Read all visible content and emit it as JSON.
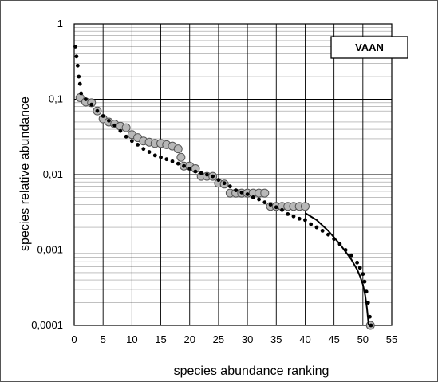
{
  "chart_data": {
    "type": "scatter",
    "title": "",
    "xlabel": "species  abundance  ranking",
    "ylabel": "species  relative  abundance",
    "xlim": [
      0,
      55
    ],
    "ylim": [
      0.0001,
      1
    ],
    "yscale": "log",
    "x_ticks": [
      "0",
      "5",
      "10",
      "15",
      "20",
      "25",
      "30",
      "35",
      "40",
      "45",
      "50",
      "55"
    ],
    "y_ticks": [
      "1",
      "0,1",
      "0,01",
      "0,001",
      "0,0001"
    ],
    "y_tick_values": [
      1,
      0.1,
      0.01,
      0.001,
      0.0001
    ],
    "grid": true,
    "legend": {
      "label": "VAAN",
      "position": "top-right"
    },
    "series": [
      {
        "marker": "small black dot",
        "color": "#000000",
        "points": [
          [
            0.2,
            0.5
          ],
          [
            0.4,
            0.37
          ],
          [
            0.6,
            0.28
          ],
          [
            0.8,
            0.2
          ],
          [
            1.0,
            0.16
          ],
          [
            1.2,
            0.12
          ],
          [
            2,
            0.1
          ],
          [
            3,
            0.085
          ],
          [
            4,
            0.07
          ],
          [
            5,
            0.06
          ],
          [
            6,
            0.052
          ],
          [
            7,
            0.045
          ],
          [
            8,
            0.038
          ],
          [
            9,
            0.032
          ],
          [
            10,
            0.028
          ],
          [
            11,
            0.025
          ],
          [
            12,
            0.022
          ],
          [
            13,
            0.02
          ],
          [
            14,
            0.018
          ],
          [
            15,
            0.017
          ],
          [
            16,
            0.016
          ],
          [
            17,
            0.015
          ],
          [
            18,
            0.014
          ],
          [
            19,
            0.013
          ],
          [
            20,
            0.012
          ],
          [
            21,
            0.011
          ],
          [
            22,
            0.0105
          ],
          [
            23,
            0.01
          ],
          [
            24,
            0.0095
          ],
          [
            25,
            0.0085
          ],
          [
            26,
            0.0077
          ],
          [
            27,
            0.007
          ],
          [
            28,
            0.0062
          ],
          [
            29,
            0.0058
          ],
          [
            30,
            0.0055
          ],
          [
            31,
            0.005
          ],
          [
            32,
            0.0047
          ],
          [
            33,
            0.0043
          ],
          [
            34,
            0.004
          ],
          [
            35,
            0.0037
          ],
          [
            36,
            0.0034
          ],
          [
            37,
            0.003
          ],
          [
            38,
            0.0028
          ],
          [
            39,
            0.0026
          ],
          [
            40,
            0.0025
          ],
          [
            41,
            0.0022
          ],
          [
            42,
            0.002
          ],
          [
            43,
            0.0018
          ],
          [
            44,
            0.0016
          ],
          [
            45,
            0.0014
          ],
          [
            46,
            0.0012
          ],
          [
            47,
            0.001
          ],
          [
            48,
            0.00085
          ],
          [
            49,
            0.00068
          ],
          [
            49.5,
            0.00058
          ],
          [
            50,
            0.00048
          ],
          [
            50.3,
            0.00038
          ],
          [
            50.6,
            0.00028
          ],
          [
            50.9,
            0.0002
          ],
          [
            51.2,
            0.00013
          ],
          [
            51.4,
            0.0001
          ]
        ]
      },
      {
        "marker": "grey circle",
        "color": "#b8b8b8",
        "points": [
          [
            1,
            0.105
          ],
          [
            2,
            0.092
          ],
          [
            3,
            0.09
          ],
          [
            4,
            0.07
          ],
          [
            5,
            0.055
          ],
          [
            6,
            0.05
          ],
          [
            7,
            0.047
          ],
          [
            8,
            0.044
          ],
          [
            9,
            0.042
          ],
          [
            10,
            0.034
          ],
          [
            11,
            0.031
          ],
          [
            12,
            0.028
          ],
          [
            13,
            0.027
          ],
          [
            14,
            0.026
          ],
          [
            15,
            0.026
          ],
          [
            16,
            0.025
          ],
          [
            17,
            0.024
          ],
          [
            18,
            0.022
          ],
          [
            18.5,
            0.017
          ],
          [
            19,
            0.013
          ],
          [
            20,
            0.013
          ],
          [
            21,
            0.012
          ],
          [
            22,
            0.0095
          ],
          [
            23,
            0.0095
          ],
          [
            24,
            0.0095
          ],
          [
            25,
            0.0077
          ],
          [
            26,
            0.0075
          ],
          [
            27,
            0.0057
          ],
          [
            28,
            0.0057
          ],
          [
            29,
            0.0057
          ],
          [
            30,
            0.0057
          ],
          [
            31,
            0.0057
          ],
          [
            32,
            0.0057
          ],
          [
            33,
            0.0057
          ],
          [
            34,
            0.0038
          ],
          [
            35,
            0.0038
          ],
          [
            36,
            0.0038
          ],
          [
            37,
            0.0038
          ],
          [
            38,
            0.0038
          ],
          [
            39,
            0.0038
          ],
          [
            40,
            0.0038
          ],
          [
            51.3,
            0.0001
          ]
        ]
      },
      {
        "marker": "line",
        "color": "#000000",
        "points": [
          [
            40,
            0.0031
          ],
          [
            42,
            0.0025
          ],
          [
            44,
            0.0018
          ],
          [
            46,
            0.0012
          ],
          [
            47,
            0.00095
          ],
          [
            48,
            0.00075
          ],
          [
            49,
            0.00055
          ],
          [
            49.5,
            0.00045
          ],
          [
            50,
            0.00035
          ],
          [
            50.4,
            0.00025
          ],
          [
            50.7,
            0.00017
          ],
          [
            51,
            0.0001
          ]
        ]
      }
    ]
  }
}
